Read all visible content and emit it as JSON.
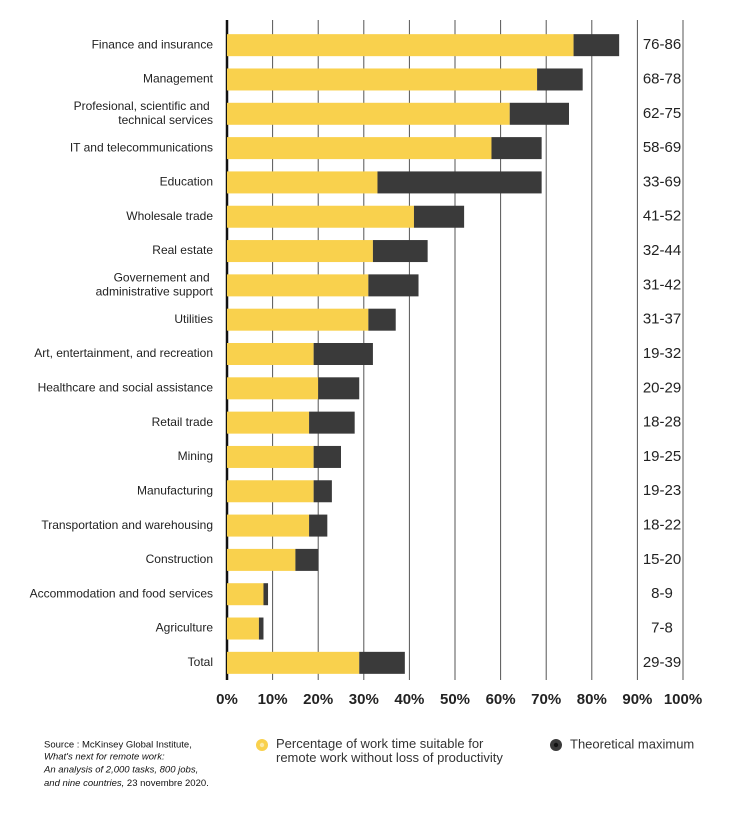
{
  "chart_data": {
    "type": "stacked-barh",
    "categories": [
      "Finance and insurance",
      "Management",
      "Profesional, scientific and\ntechnical services",
      "IT and telecommunications",
      "Education",
      "Wholesale trade",
      "Real estate",
      "Governement and\nadministrative support",
      "Utilities",
      "Art, entertainment, and recreation",
      "Healthcare and social assistance",
      "Retail trade",
      "Mining",
      "Manufacturing",
      "Transportation and warehousing",
      "Construction",
      "Accommodation and food services",
      "Agriculture",
      "Total"
    ],
    "series": [
      {
        "name": "Percentage of work time suitable for\nremote work without loss of productivity",
        "color": "#f9d14d",
        "values": [
          76,
          68,
          62,
          58,
          33,
          41,
          32,
          31,
          31,
          19,
          20,
          18,
          19,
          19,
          18,
          15,
          8,
          7,
          29
        ]
      },
      {
        "name": "Theoretical maximum",
        "color": "#3a3a3a",
        "values": [
          10,
          10,
          13,
          11,
          36,
          11,
          12,
          11,
          6,
          13,
          9,
          10,
          6,
          4,
          4,
          5,
          1,
          1,
          10
        ]
      }
    ],
    "range_labels": [
      "76-86",
      "68-78",
      "62-75",
      "58-69",
      "33-69",
      "41-52",
      "32-44",
      "31-42",
      "31-37",
      "19-32",
      "20-29",
      "18-28",
      "19-25",
      "19-23",
      "18-22",
      "15-20",
      "8-9",
      "7-8",
      "29-39"
    ],
    "xlim": [
      0,
      100
    ],
    "xticks": [
      {
        "value": 0,
        "label": "0%"
      },
      {
        "value": 10,
        "label": "10%"
      },
      {
        "value": 20,
        "label": "20%"
      },
      {
        "value": 30,
        "label": "30%"
      },
      {
        "value": 40,
        "label": "40%"
      },
      {
        "value": 50,
        "label": "50%"
      },
      {
        "value": 60,
        "label": "60%"
      },
      {
        "value": 70,
        "label": "70%"
      },
      {
        "value": 80,
        "label": "80%"
      },
      {
        "value": 90,
        "label": "90%"
      },
      {
        "value": 100,
        "label": "100%"
      }
    ],
    "grid": true,
    "source": [
      "Source : McKinsey Global Institute,",
      "What's next for remote work:",
      "An analysis of 2,000 tasks, 800 jobs,",
      "and nine countries,",
      "23 novembre 2020."
    ]
  }
}
